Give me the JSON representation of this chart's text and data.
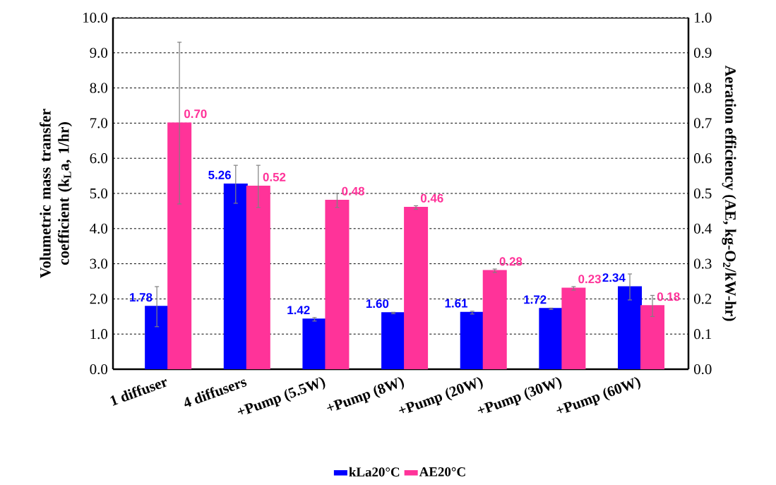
{
  "chart_data": {
    "type": "bar",
    "ylabel": "Volumetric mass transfer coefficient (k$_{L}$a, 1/hr)",
    "y2label": "Aeration efficiency (AE, kg-O$_{2}$/kW-hr)",
    "categories": [
      "1 diffuser",
      "4 diffusers",
      "+Pump (5.5W)",
      "+Pump (8W)",
      "+Pump (20W)",
      "+Pump (30W)",
      "+Pump (60W)"
    ],
    "series": [
      {
        "name": "kLa20°C",
        "color": "#0000ff",
        "values": [
          1.78,
          5.26,
          1.42,
          1.6,
          1.61,
          1.72,
          2.34
        ],
        "errors": [
          0.57,
          0.54,
          0.05,
          0.02,
          0.04,
          0.02,
          0.37
        ],
        "value_labels": [
          "1.78",
          "5.26",
          "1.42",
          "1.60",
          "1.61",
          "1.72",
          "2.34"
        ]
      },
      {
        "name": "AE20°C",
        "color": "#ff3399",
        "axis": "y2",
        "values": [
          0.7,
          0.52,
          0.48,
          0.46,
          0.28,
          0.23,
          0.18
        ],
        "errors": [
          0.23,
          0.06,
          0.02,
          0.005,
          0.005,
          0.005,
          0.03
        ],
        "value_labels": [
          "0.70",
          "0.52",
          "0.48",
          "0.46",
          "0.28",
          "0.23",
          "0.18"
        ]
      }
    ],
    "ylim": [
      0,
      10
    ],
    "yticks": [
      {
        "value": 0,
        "label": "0.0"
      },
      {
        "value": 1,
        "label": "1.0"
      },
      {
        "value": 2,
        "label": "2.0"
      },
      {
        "value": 3,
        "label": "3.0"
      },
      {
        "value": 4,
        "label": "4.0"
      },
      {
        "value": 5,
        "label": "5.0"
      },
      {
        "value": 6,
        "label": "6.0"
      },
      {
        "value": 7,
        "label": "7.0"
      },
      {
        "value": 8,
        "label": "8.0"
      },
      {
        "value": 9,
        "label": "9.0"
      },
      {
        "value": 10,
        "label": "10.0"
      }
    ],
    "y2lim": [
      0,
      1
    ],
    "y2ticks": [
      {
        "value": 0,
        "label": "0.0"
      },
      {
        "value": 0.1,
        "label": "0.1"
      },
      {
        "value": 0.2,
        "label": "0.2"
      },
      {
        "value": 0.3,
        "label": "0.3"
      },
      {
        "value": 0.4,
        "label": "0.4"
      },
      {
        "value": 0.5,
        "label": "0.5"
      },
      {
        "value": 0.6,
        "label": "0.6"
      },
      {
        "value": 0.7,
        "label": "0.7"
      },
      {
        "value": 0.8,
        "label": "0.8"
      },
      {
        "value": 0.9,
        "label": "0.9"
      },
      {
        "value": 1,
        "label": "1.0"
      }
    ],
    "grid": "y",
    "legend": "bottom"
  }
}
